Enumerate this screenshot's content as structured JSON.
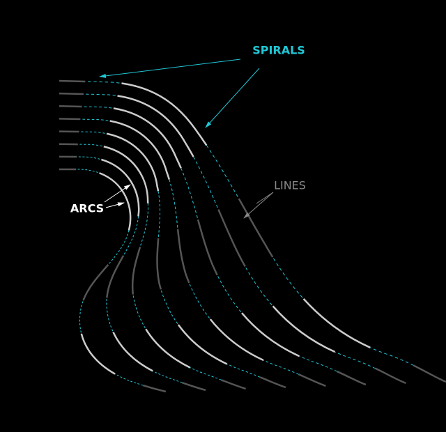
{
  "labels": {
    "spirals": "SPIRALS",
    "lines": "LINES",
    "arcs": "ARCS"
  }
}
